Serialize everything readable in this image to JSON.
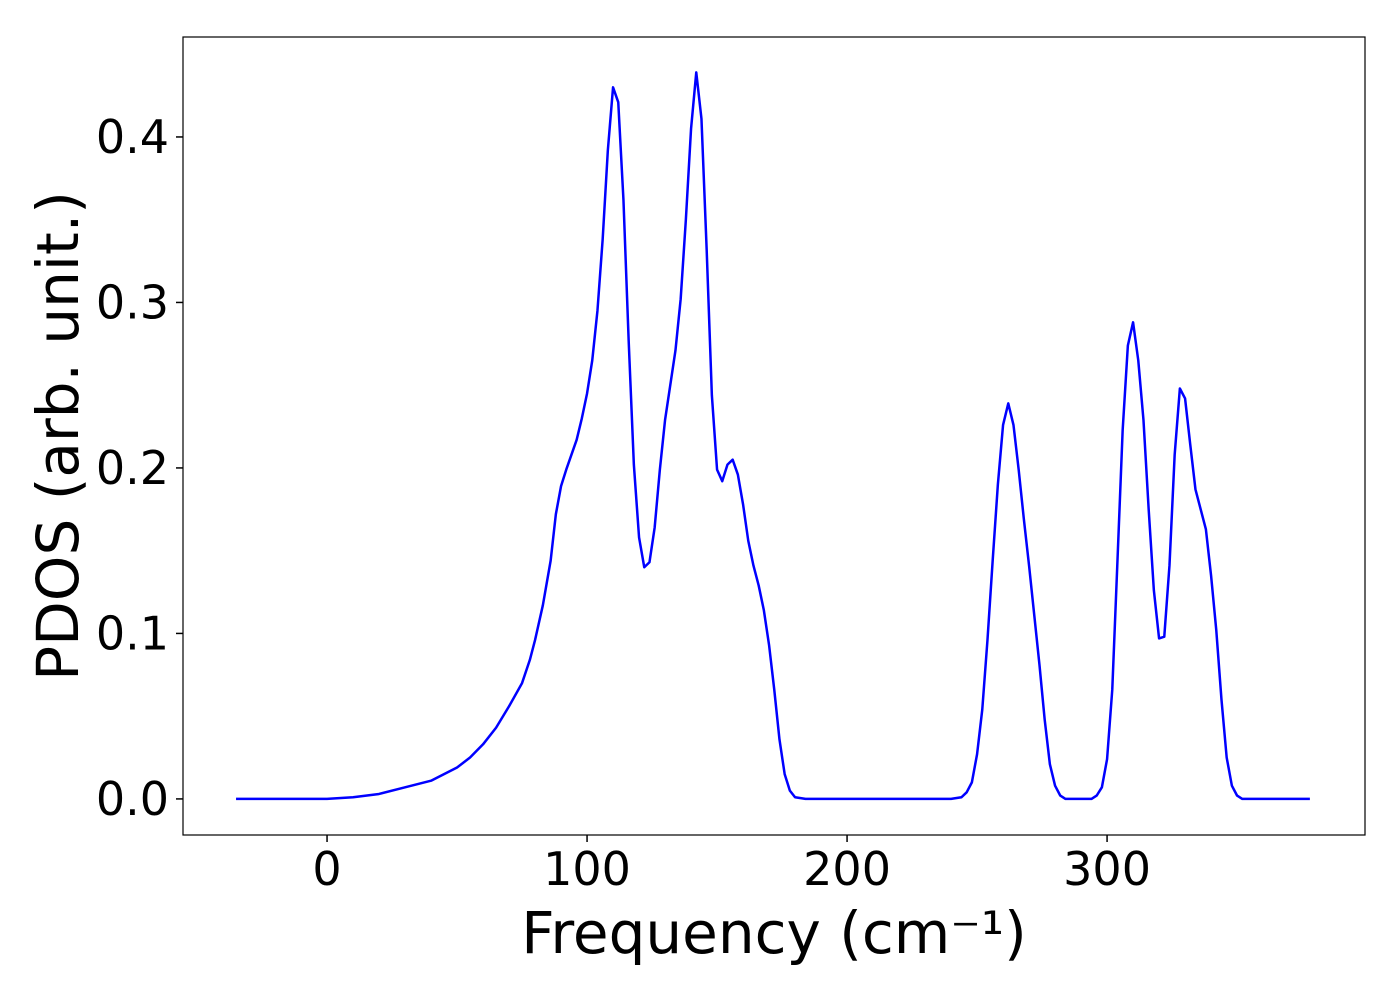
{
  "chart_data": {
    "type": "line",
    "xlabel": "Frequency (cm⁻¹)",
    "ylabel": "PDOS (arb. unit.)",
    "color": "#0000ff",
    "x": [
      -35,
      0,
      10,
      20,
      30,
      40,
      50,
      55,
      60,
      65,
      70,
      75,
      78,
      80,
      83,
      86,
      88,
      90,
      92,
      94,
      96,
      98,
      100,
      102,
      104,
      106,
      108,
      110,
      112,
      114,
      116,
      118,
      120,
      122,
      124,
      126,
      128,
      130,
      132,
      134,
      136,
      138,
      140,
      142,
      144,
      146,
      148,
      150,
      152,
      154,
      156,
      158,
      160,
      162,
      164,
      166,
      168,
      170,
      172,
      174,
      176,
      178,
      180,
      184,
      240,
      244,
      246,
      248,
      250,
      252,
      254,
      256,
      258,
      260,
      262,
      264,
      266,
      268,
      270,
      272,
      274,
      276,
      278,
      280,
      282,
      284,
      294,
      296,
      298,
      300,
      302,
      304,
      306,
      308,
      310,
      312,
      314,
      316,
      318,
      320,
      322,
      324,
      326,
      328,
      330,
      332,
      334,
      336,
      338,
      340,
      342,
      344,
      346,
      348,
      350,
      352,
      378
    ],
    "values": [
      0,
      0,
      0.001,
      0.003,
      0.007,
      0.011,
      0.019,
      0.025,
      0.033,
      0.043,
      0.056,
      0.07,
      0.084,
      0.096,
      0.117,
      0.144,
      0.172,
      0.189,
      0.199,
      0.208,
      0.217,
      0.23,
      0.245,
      0.265,
      0.295,
      0.338,
      0.392,
      0.43,
      0.421,
      0.362,
      0.277,
      0.202,
      0.158,
      0.14,
      0.143,
      0.164,
      0.199,
      0.229,
      0.25,
      0.271,
      0.302,
      0.35,
      0.405,
      0.439,
      0.411,
      0.332,
      0.244,
      0.199,
      0.192,
      0.202,
      0.205,
      0.196,
      0.178,
      0.156,
      0.141,
      0.129,
      0.114,
      0.093,
      0.066,
      0.036,
      0.015,
      0.005,
      0.001,
      0,
      0,
      0.001,
      0.004,
      0.01,
      0.027,
      0.054,
      0.096,
      0.144,
      0.19,
      0.226,
      0.239,
      0.226,
      0.199,
      0.169,
      0.141,
      0.111,
      0.081,
      0.048,
      0.021,
      0.008,
      0.002,
      0,
      0,
      0.002,
      0.007,
      0.024,
      0.066,
      0.144,
      0.223,
      0.274,
      0.288,
      0.265,
      0.229,
      0.175,
      0.126,
      0.097,
      0.098,
      0.141,
      0.208,
      0.248,
      0.242,
      0.214,
      0.187,
      0.175,
      0.163,
      0.135,
      0.102,
      0.06,
      0.025,
      0.008,
      0.002,
      0,
      0
    ],
    "xlim": [
      -55.4,
      399.2
    ],
    "ylim": [
      -0.0218,
      0.4604
    ],
    "xticks": [
      0,
      100,
      200,
      300
    ],
    "yticks": [
      {
        "value": 0,
        "label": "0.0"
      },
      0.1,
      0.2,
      0.3,
      0.4
    ]
  }
}
